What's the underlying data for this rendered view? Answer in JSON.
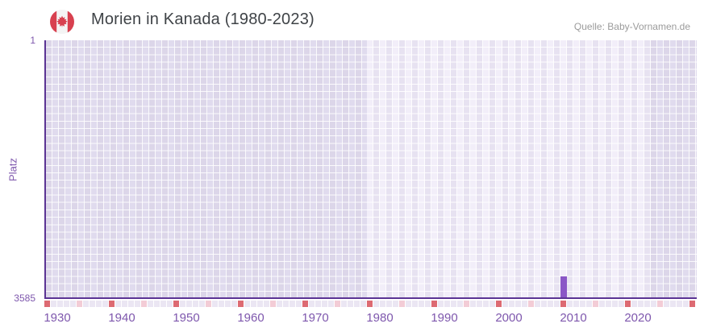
{
  "header": {
    "title": "Morien in Kanada (1980-2023)",
    "source": "Quelle: Baby-Vornamen.de"
  },
  "chart_data": {
    "type": "bar",
    "title": "Morien in Kanada (1980-2023)",
    "ylabel": "Platz",
    "y_axis": {
      "top_tick": "1",
      "bottom_tick": "3585",
      "reversed": true,
      "range": [
        1,
        3585
      ]
    },
    "x_ticks": [
      1930,
      1940,
      1950,
      1960,
      1970,
      1980,
      1990,
      2000,
      2010,
      2020
    ],
    "axis_start_year": 1928,
    "axis_end_year": 2029,
    "coverage_band_years": [
      1978,
      2022
    ],
    "decade_marker_interval": 10,
    "half_decade_offset": 5,
    "points": [
      {
        "year": 2008,
        "platz": 3585
      }
    ],
    "colors": {
      "axis_line": "#5b3494",
      "tick_text": "#7e57ad",
      "bar": "#8a57c6",
      "grid_dark": "#dcd6e9",
      "grid_light": "#f2eef9",
      "marker_decade": "#dd6a72",
      "marker_half_decade": "#f3ccd6",
      "marker_base": "#ebe6f3",
      "flag_red": "#d8404f",
      "title_text": "#3f4347",
      "source_text": "#9b9b9b"
    }
  }
}
